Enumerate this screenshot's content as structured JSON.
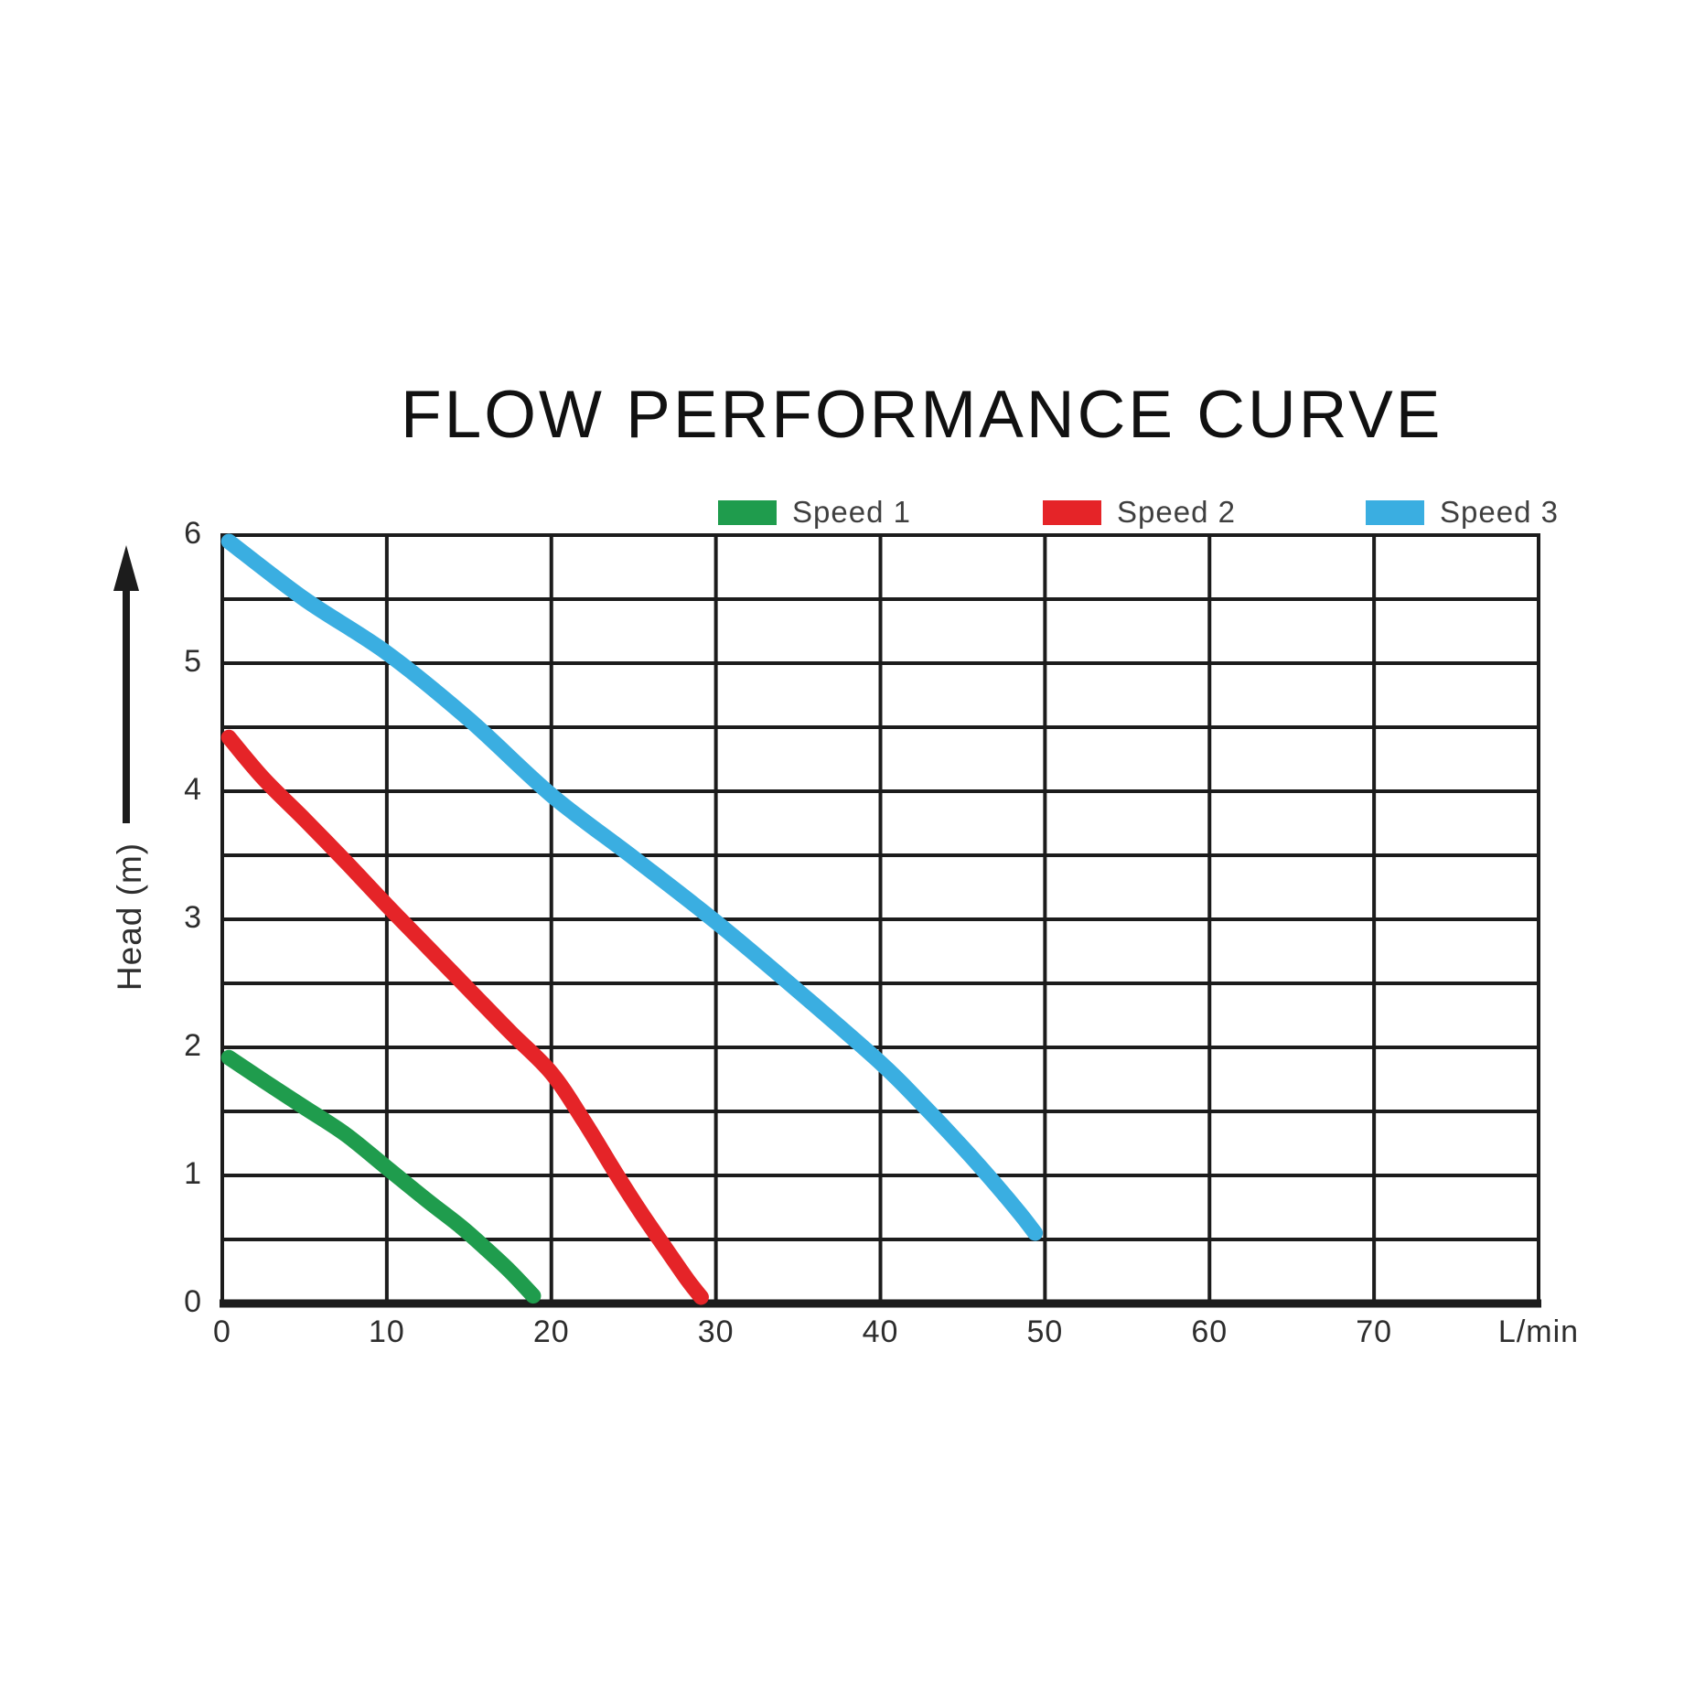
{
  "page": {
    "background": "#ffffff"
  },
  "chart_data": {
    "type": "line",
    "title": "FLOW PERFORMANCE CURVE",
    "x_axis": {
      "unit_label": "L/min",
      "min": 0,
      "max": 80,
      "tick_values": [
        0,
        10,
        20,
        30,
        40,
        50,
        60,
        70
      ],
      "gridline_step": 10
    },
    "y_axis": {
      "label": "Head (m)",
      "min": 0,
      "max": 6,
      "tick_values": [
        0,
        1,
        2,
        3,
        4,
        5,
        6
      ],
      "gridline_step": 0.5
    },
    "grid": true,
    "legend_position": "top",
    "colors": {
      "grid": "#1c1c1c",
      "axis": "#1c1c1c",
      "title_text": "#111111",
      "tick_text": "#2d2d2d",
      "legend_text": "#3f3f3f",
      "arrow": "#1c1c1c"
    },
    "series": [
      {
        "name": "Speed 1",
        "color": "#1f9c4d",
        "points": [
          [
            0.4,
            1.92
          ],
          [
            2.5,
            1.74
          ],
          [
            5,
            1.53
          ],
          [
            7.5,
            1.32
          ],
          [
            10,
            1.06
          ],
          [
            12.5,
            0.8
          ],
          [
            14.5,
            0.6
          ],
          [
            16,
            0.43
          ],
          [
            17.5,
            0.25
          ],
          [
            18.9,
            0.06
          ]
        ]
      },
      {
        "name": "Speed 2",
        "color": "#e52428",
        "points": [
          [
            0.4,
            4.42
          ],
          [
            2.5,
            4.1
          ],
          [
            5,
            3.78
          ],
          [
            7.5,
            3.45
          ],
          [
            10,
            3.11
          ],
          [
            12.5,
            2.78
          ],
          [
            15,
            2.45
          ],
          [
            17.5,
            2.12
          ],
          [
            20,
            1.8
          ],
          [
            22,
            1.42
          ],
          [
            24,
            1.0
          ],
          [
            25.5,
            0.7
          ],
          [
            27,
            0.42
          ],
          [
            28.3,
            0.18
          ],
          [
            29.1,
            0.05
          ]
        ]
      },
      {
        "name": "Speed 3",
        "color": "#3aaee1",
        "points": [
          [
            0.4,
            5.95
          ],
          [
            5,
            5.5
          ],
          [
            10,
            5.08
          ],
          [
            15,
            4.56
          ],
          [
            20,
            3.97
          ],
          [
            25,
            3.48
          ],
          [
            30,
            2.98
          ],
          [
            35,
            2.44
          ],
          [
            40,
            1.88
          ],
          [
            42.5,
            1.56
          ],
          [
            45,
            1.22
          ],
          [
            47,
            0.93
          ],
          [
            48.5,
            0.7
          ],
          [
            49.4,
            0.55
          ]
        ]
      }
    ]
  }
}
